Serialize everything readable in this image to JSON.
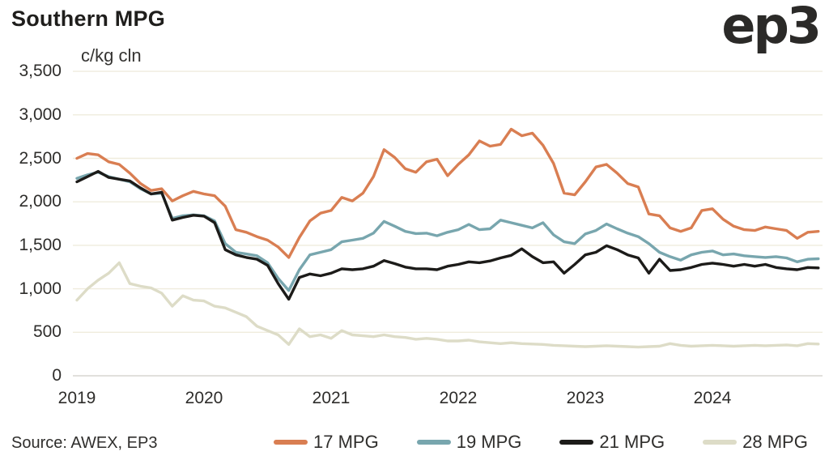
{
  "title": "Southern MPG",
  "units_label": "c/kg cln",
  "logo_text": "ep3",
  "source_text": "Source: AWEX, EP3",
  "colors": {
    "grid": "#efecdd",
    "zero_line": "#d7d6d0",
    "series_17": "#d97e52",
    "series_19": "#78a6ae",
    "series_21": "#1c1b19",
    "series_28": "#dddcc7"
  },
  "y_axis": {
    "ticks": [
      "0",
      "500",
      "1,000",
      "1,500",
      "2,000",
      "2,500",
      "3,000",
      "3,500"
    ]
  },
  "x_axis": {
    "ticks": [
      "2019",
      "2020",
      "2021",
      "2022",
      "2023",
      "2024"
    ]
  },
  "chart_data": {
    "type": "line",
    "title": "Southern MPG",
    "ylabel": "c/kg cln",
    "ylim": [
      0,
      3500
    ],
    "ytick_step": 500,
    "grid": "horizontal",
    "legend_position": "bottom",
    "x": [
      "2019-01",
      "2019-02",
      "2019-03",
      "2019-04",
      "2019-05",
      "2019-06",
      "2019-07",
      "2019-08",
      "2019-09",
      "2019-10",
      "2019-11",
      "2019-12",
      "2020-01",
      "2020-02",
      "2020-03",
      "2020-04",
      "2020-05",
      "2020-06",
      "2020-07",
      "2020-08",
      "2020-09",
      "2020-10",
      "2020-11",
      "2020-12",
      "2021-01",
      "2021-02",
      "2021-03",
      "2021-04",
      "2021-05",
      "2021-06",
      "2021-07",
      "2021-08",
      "2021-09",
      "2021-10",
      "2021-11",
      "2021-12",
      "2022-01",
      "2022-02",
      "2022-03",
      "2022-04",
      "2022-05",
      "2022-06",
      "2022-07",
      "2022-08",
      "2022-09",
      "2022-10",
      "2022-11",
      "2022-12",
      "2023-01",
      "2023-02",
      "2023-03",
      "2023-04",
      "2023-05",
      "2023-06",
      "2023-07",
      "2023-08",
      "2023-09",
      "2023-10",
      "2023-11",
      "2023-12",
      "2024-01",
      "2024-02",
      "2024-03",
      "2024-04",
      "2024-05",
      "2024-06",
      "2024-07",
      "2024-08",
      "2024-09",
      "2024-10",
      "2024-11"
    ],
    "series": [
      {
        "name": "17 MPG",
        "color": "#d97e52",
        "values": [
          2500,
          2555,
          2540,
          2460,
          2430,
          2330,
          2210,
          2130,
          2150,
          2010,
          2070,
          2120,
          2090,
          2070,
          1950,
          1680,
          1650,
          1600,
          1560,
          1480,
          1360,
          1590,
          1780,
          1870,
          1900,
          2050,
          2010,
          2100,
          2290,
          2600,
          2510,
          2380,
          2340,
          2460,
          2490,
          2300,
          2430,
          2540,
          2700,
          2640,
          2660,
          2835,
          2760,
          2790,
          2650,
          2440,
          2100,
          2080,
          2230,
          2400,
          2430,
          2330,
          2210,
          2170,
          1860,
          1840,
          1700,
          1660,
          1700,
          1900,
          1920,
          1800,
          1720,
          1680,
          1670,
          1710,
          1690,
          1670,
          1580,
          1650,
          1660
        ]
      },
      {
        "name": "19 MPG",
        "color": "#78a6ae",
        "values": [
          2270,
          2310,
          2340,
          2290,
          2260,
          2230,
          2150,
          2090,
          2100,
          1810,
          1840,
          1850,
          1840,
          1780,
          1520,
          1420,
          1400,
          1380,
          1300,
          1120,
          980,
          1220,
          1390,
          1420,
          1450,
          1540,
          1560,
          1580,
          1640,
          1775,
          1720,
          1660,
          1635,
          1640,
          1610,
          1650,
          1680,
          1740,
          1680,
          1690,
          1790,
          1760,
          1730,
          1700,
          1760,
          1620,
          1540,
          1520,
          1630,
          1670,
          1745,
          1690,
          1640,
          1600,
          1520,
          1420,
          1370,
          1330,
          1390,
          1420,
          1435,
          1390,
          1400,
          1380,
          1370,
          1360,
          1370,
          1355,
          1310,
          1340,
          1345
        ]
      },
      {
        "name": "21 MPG",
        "color": "#1c1b19",
        "values": [
          2230,
          2290,
          2350,
          2280,
          2260,
          2240,
          2160,
          2090,
          2110,
          1790,
          1820,
          1845,
          1835,
          1760,
          1450,
          1390,
          1360,
          1340,
          1270,
          1060,
          880,
          1130,
          1170,
          1150,
          1180,
          1230,
          1220,
          1230,
          1260,
          1325,
          1290,
          1250,
          1230,
          1230,
          1220,
          1260,
          1280,
          1310,
          1300,
          1320,
          1355,
          1385,
          1460,
          1370,
          1300,
          1310,
          1180,
          1280,
          1390,
          1420,
          1495,
          1450,
          1390,
          1355,
          1180,
          1340,
          1210,
          1220,
          1245,
          1280,
          1295,
          1280,
          1260,
          1280,
          1260,
          1280,
          1245,
          1230,
          1220,
          1245,
          1240
        ]
      },
      {
        "name": "28 MPG",
        "color": "#dddcc7",
        "values": [
          870,
          1000,
          1100,
          1180,
          1300,
          1060,
          1030,
          1010,
          950,
          800,
          920,
          870,
          860,
          800,
          780,
          730,
          680,
          570,
          520,
          470,
          360,
          540,
          450,
          470,
          430,
          520,
          470,
          460,
          450,
          470,
          450,
          440,
          420,
          430,
          420,
          400,
          400,
          410,
          390,
          380,
          370,
          380,
          370,
          365,
          360,
          350,
          345,
          340,
          335,
          340,
          345,
          340,
          335,
          330,
          335,
          340,
          370,
          350,
          340,
          345,
          350,
          345,
          340,
          345,
          350,
          345,
          350,
          355,
          345,
          370,
          365
        ]
      }
    ]
  }
}
